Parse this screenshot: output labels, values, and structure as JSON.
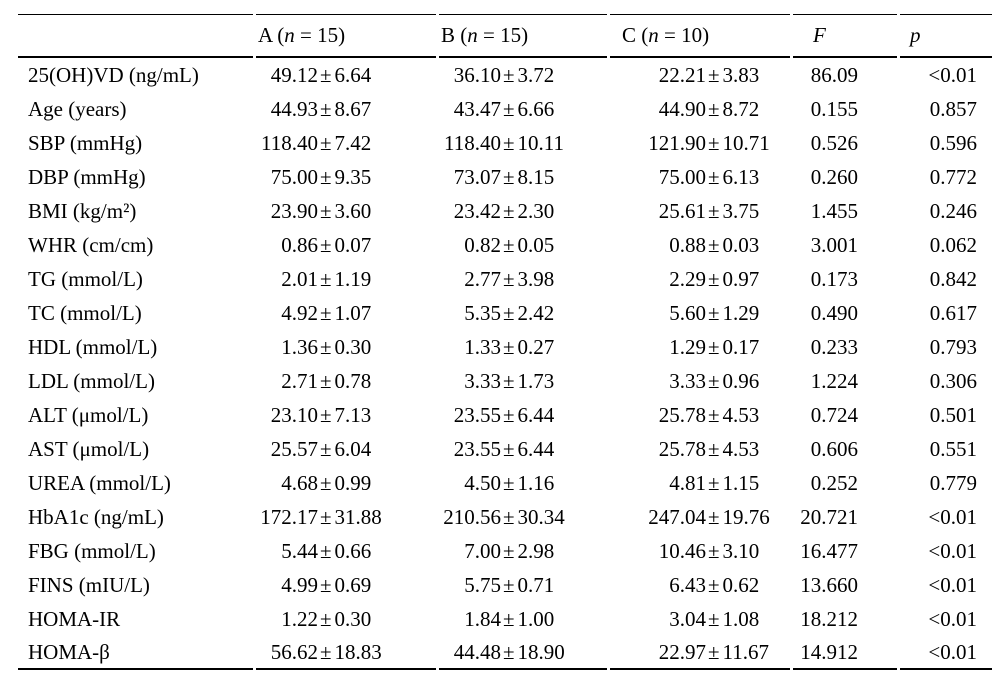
{
  "page": {
    "background_color": "#ffffff",
    "text_color": "#000000",
    "rule_color": "#000000"
  },
  "table": {
    "type": "table",
    "plus_minus": "±",
    "header": {
      "row_label": "",
      "groups": [
        {
          "prefix": "A (",
          "n_symbol": "n",
          "mid": " = ",
          "count": "15",
          "suffix": ")"
        },
        {
          "prefix": "B (",
          "n_symbol": "n",
          "mid": " = ",
          "count": "15",
          "suffix": ")"
        },
        {
          "prefix": "C (",
          "n_symbol": "n",
          "mid": " = ",
          "count": "10",
          "suffix": ")"
        }
      ],
      "f_label": "F",
      "p_label": "p"
    },
    "rows": [
      {
        "label": "25(OH)VD (ng/mL)",
        "a": {
          "mean": "49.12",
          "sd": "6.64"
        },
        "b": {
          "mean": "36.10",
          "sd": "3.72"
        },
        "c": {
          "mean": "22.21",
          "sd": "3.83"
        },
        "f": "86.09",
        "p": "<0.01"
      },
      {
        "label": "Age (years)",
        "a": {
          "mean": "44.93",
          "sd": "8.67"
        },
        "b": {
          "mean": "43.47",
          "sd": "6.66"
        },
        "c": {
          "mean": "44.90",
          "sd": "8.72"
        },
        "f": "0.155",
        "p": "0.857"
      },
      {
        "label": "SBP (mmHg)",
        "a": {
          "mean": "118.40",
          "sd": "7.42"
        },
        "b": {
          "mean": "118.40",
          "sd": "10.11"
        },
        "c": {
          "mean": "121.90",
          "sd": "10.71"
        },
        "f": "0.526",
        "p": "0.596"
      },
      {
        "label": "DBP (mmHg)",
        "a": {
          "mean": "75.00",
          "sd": "9.35"
        },
        "b": {
          "mean": "73.07",
          "sd": "8.15"
        },
        "c": {
          "mean": "75.00",
          "sd": "6.13"
        },
        "f": "0.260",
        "p": "0.772"
      },
      {
        "label": "BMI (kg/m²)",
        "a": {
          "mean": "23.90",
          "sd": "3.60"
        },
        "b": {
          "mean": "23.42",
          "sd": "2.30"
        },
        "c": {
          "mean": "25.61",
          "sd": "3.75"
        },
        "f": "1.455",
        "p": "0.246"
      },
      {
        "label": "WHR (cm/cm)",
        "a": {
          "mean": "0.86",
          "sd": "0.07"
        },
        "b": {
          "mean": "0.82",
          "sd": "0.05"
        },
        "c": {
          "mean": "0.88",
          "sd": "0.03"
        },
        "f": "3.001",
        "p": "0.062"
      },
      {
        "label": "TG (mmol/L)",
        "a": {
          "mean": "2.01",
          "sd": "1.19"
        },
        "b": {
          "mean": "2.77",
          "sd": "3.98"
        },
        "c": {
          "mean": "2.29",
          "sd": "0.97"
        },
        "f": "0.173",
        "p": "0.842"
      },
      {
        "label": "TC (mmol/L)",
        "a": {
          "mean": "4.92",
          "sd": "1.07"
        },
        "b": {
          "mean": "5.35",
          "sd": "2.42"
        },
        "c": {
          "mean": "5.60",
          "sd": "1.29"
        },
        "f": "0.490",
        "p": "0.617"
      },
      {
        "label": "HDL (mmol/L)",
        "a": {
          "mean": "1.36",
          "sd": "0.30"
        },
        "b": {
          "mean": "1.33",
          "sd": "0.27"
        },
        "c": {
          "mean": "1.29",
          "sd": "0.17"
        },
        "f": "0.233",
        "p": "0.793"
      },
      {
        "label": "LDL (mmol/L)",
        "a": {
          "mean": "2.71",
          "sd": "0.78"
        },
        "b": {
          "mean": "3.33",
          "sd": "1.73"
        },
        "c": {
          "mean": "3.33",
          "sd": "0.96"
        },
        "f": "1.224",
        "p": "0.306"
      },
      {
        "label": "ALT (μmol/L)",
        "a": {
          "mean": "23.10",
          "sd": "7.13"
        },
        "b": {
          "mean": "23.55",
          "sd": "6.44"
        },
        "c": {
          "mean": "25.78",
          "sd": "4.53"
        },
        "f": "0.724",
        "p": "0.501"
      },
      {
        "label": "AST (μmol/L)",
        "a": {
          "mean": "25.57",
          "sd": "6.04"
        },
        "b": {
          "mean": "23.55",
          "sd": "6.44"
        },
        "c": {
          "mean": "25.78",
          "sd": "4.53"
        },
        "f": "0.606",
        "p": "0.551"
      },
      {
        "label": "UREA (mmol/L)",
        "a": {
          "mean": "4.68",
          "sd": "0.99"
        },
        "b": {
          "mean": "4.50",
          "sd": "1.16"
        },
        "c": {
          "mean": "4.81",
          "sd": "1.15"
        },
        "f": "0.252",
        "p": "0.779"
      },
      {
        "label": "HbA1c (ng/mL)",
        "a": {
          "mean": "172.17",
          "sd": "31.88"
        },
        "b": {
          "mean": "210.56",
          "sd": "30.34"
        },
        "c": {
          "mean": "247.04",
          "sd": "19.76"
        },
        "f": "20.721",
        "p": "<0.01"
      },
      {
        "label": "FBG (mmol/L)",
        "a": {
          "mean": "5.44",
          "sd": "0.66"
        },
        "b": {
          "mean": "7.00",
          "sd": "2.98"
        },
        "c": {
          "mean": "10.46",
          "sd": "3.10"
        },
        "f": "16.477",
        "p": "<0.01"
      },
      {
        "label": "FINS (mIU/L)",
        "a": {
          "mean": "4.99",
          "sd": "0.69"
        },
        "b": {
          "mean": "5.75",
          "sd": "0.71"
        },
        "c": {
          "mean": "6.43",
          "sd": "0.62"
        },
        "f": "13.660",
        "p": "<0.01"
      },
      {
        "label": "HOMA-IR",
        "a": {
          "mean": "1.22",
          "sd": "0.30"
        },
        "b": {
          "mean": "1.84",
          "sd": "1.00"
        },
        "c": {
          "mean": "3.04",
          "sd": "1.08"
        },
        "f": "18.212",
        "p": "<0.01"
      },
      {
        "label": "HOMA-β",
        "a": {
          "mean": "56.62",
          "sd": "18.83"
        },
        "b": {
          "mean": "44.48",
          "sd": "18.90"
        },
        "c": {
          "mean": "22.97",
          "sd": "11.67"
        },
        "f": "14.912",
        "p": "<0.01"
      }
    ]
  }
}
